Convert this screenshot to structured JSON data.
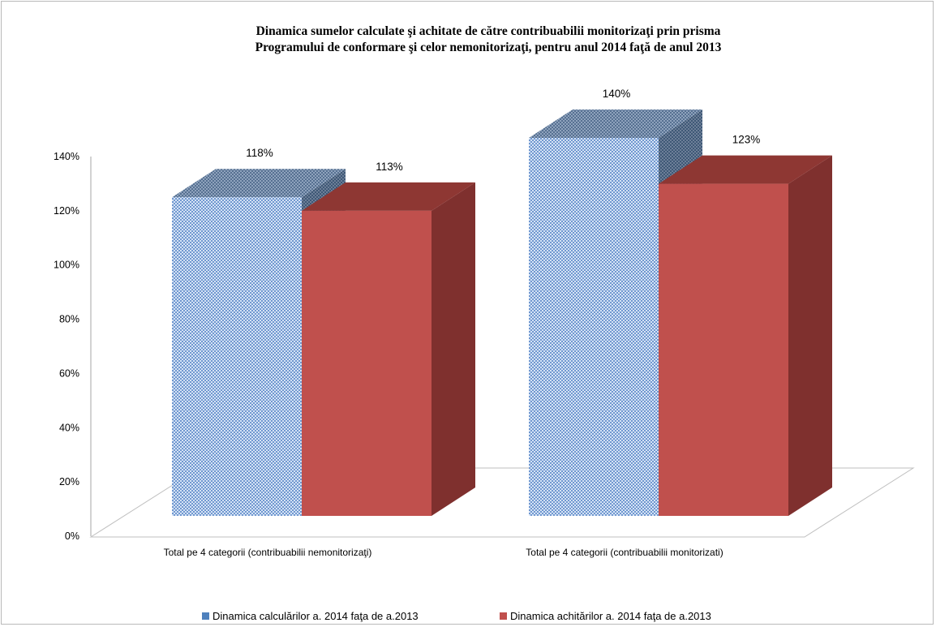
{
  "chart_data": {
    "type": "bar",
    "title": [
      "Dinamica sumelor  calculate şi achitate de către  contribuabilii  monitorizaţi  prin prisma",
      "Programului de conformare şi celor nemonitorizaţi, pentru anul 2014 faţă de anul 2013"
    ],
    "categories": [
      "Total pe 4 categorii (contribuabilii nemonitorizaţi)",
      "Total pe 4 categorii (contribuabilii monitorizati)"
    ],
    "series": [
      {
        "name": "Dinamica calculărilor a. 2014 faţa de a.2013",
        "values": [
          118,
          140
        ],
        "labels": [
          "118%",
          "140%"
        ],
        "color": "#9fbde8",
        "pattern_color": "#4f81bd"
      },
      {
        "name": "Dinamica achitărilor a. 2014 faţa de a.2013",
        "values": [
          113,
          123
        ],
        "labels": [
          "113%",
          "123%"
        ],
        "color": "#c0504d",
        "pattern_color": "#c0504d"
      }
    ],
    "y_ticks": [
      "0%",
      "20%",
      "40%",
      "60%",
      "80%",
      "100%",
      "120%",
      "140%"
    ],
    "ylim": [
      0,
      140
    ],
    "y_unit": "%",
    "three_d": true,
    "grid": false,
    "legend_position": "bottom"
  }
}
